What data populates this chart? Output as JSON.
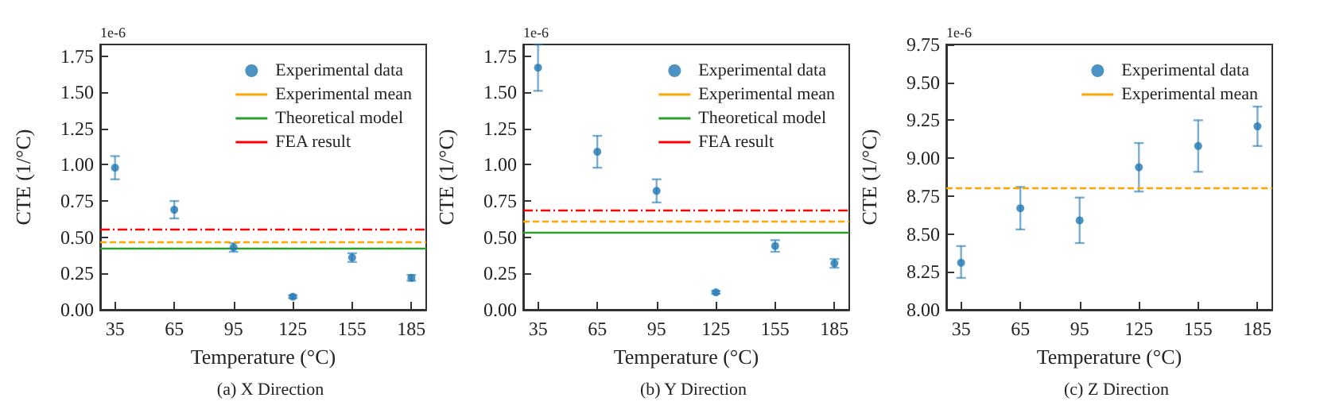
{
  "chart_data": [
    {
      "type": "scatter",
      "title": "(a) X Direction",
      "xlabel": "Temperature (°C)",
      "ylabel": "CTE (1/°C)",
      "annotations": [
        "1e-6"
      ],
      "x": [
        35,
        65,
        95,
        125,
        155,
        185
      ],
      "xlim": [
        27.5,
        192.5
      ],
      "xticks": [
        35,
        65,
        95,
        125,
        155,
        185
      ],
      "ylim": [
        0,
        1.83
      ],
      "yticks": [
        {
          "value": 0,
          "label": "0.00"
        },
        {
          "value": 0.25,
          "label": "0.25"
        },
        {
          "value": 0.5,
          "label": "0.50"
        },
        {
          "value": 0.75,
          "label": "0.75"
        },
        {
          "value": 1,
          "label": "1.00"
        },
        {
          "value": 1.25,
          "label": "1.25"
        },
        {
          "value": 1.5,
          "label": "1.50"
        },
        {
          "value": 1.75,
          "label": "1.75"
        }
      ],
      "grid": false,
      "legend": "top right",
      "marker": "circle",
      "series": [
        {
          "name": "Experimental data",
          "color": "#1f77b4",
          "values": [
            0.98,
            0.69,
            0.43,
            0.09,
            0.36,
            0.22
          ],
          "errors": [
            0.08,
            0.06,
            0.03,
            0.01,
            0.03,
            0.02
          ]
        }
      ],
      "ref_lines": [
        {
          "axis": "y",
          "value": 0.47,
          "label": "Experimental mean",
          "color": "#ffa500",
          "line_style": "dashed"
        },
        {
          "axis": "y",
          "value": 0.42,
          "label": "Theoretical model",
          "color": "#2ca02c",
          "line_style": "solid"
        },
        {
          "axis": "y",
          "value": 0.56,
          "label": "FEA result",
          "color": "#ff0000",
          "line_style": "dashdot"
        }
      ]
    },
    {
      "type": "scatter",
      "title": "(b) Y Direction",
      "xlabel": "Temperature (°C)",
      "ylabel": "CTE (1/°C)",
      "annotations": [
        "1e-6"
      ],
      "x": [
        35,
        65,
        95,
        125,
        155,
        185
      ],
      "xlim": [
        27.5,
        192.5
      ],
      "xticks": [
        35,
        65,
        95,
        125,
        155,
        185
      ],
      "ylim": [
        0,
        1.83
      ],
      "yticks": [
        {
          "value": 0,
          "label": "0.00"
        },
        {
          "value": 0.25,
          "label": "0.25"
        },
        {
          "value": 0.5,
          "label": "0.50"
        },
        {
          "value": 0.75,
          "label": "0.75"
        },
        {
          "value": 1,
          "label": "1.00"
        },
        {
          "value": 1.25,
          "label": "1.25"
        },
        {
          "value": 1.5,
          "label": "1.50"
        },
        {
          "value": 1.75,
          "label": "1.75"
        }
      ],
      "grid": false,
      "legend": "top right",
      "marker": "circle",
      "series": [
        {
          "name": "Experimental data",
          "color": "#1f77b4",
          "values": [
            1.67,
            1.09,
            0.82,
            0.12,
            0.44,
            0.32
          ],
          "errors": [
            0.16,
            0.11,
            0.08,
            0.01,
            0.04,
            0.03
          ]
        }
      ],
      "ref_lines": [
        {
          "axis": "y",
          "value": 0.61,
          "label": "Experimental mean",
          "color": "#ffa500",
          "line_style": "dashed"
        },
        {
          "axis": "y",
          "value": 0.53,
          "label": "Theoretical model",
          "color": "#2ca02c",
          "line_style": "solid"
        },
        {
          "axis": "y",
          "value": 0.69,
          "label": "FEA result",
          "color": "#ff0000",
          "line_style": "dashdot"
        }
      ]
    },
    {
      "type": "scatter",
      "title": "(c) Z Direction",
      "xlabel": "Temperature (°C)",
      "ylabel": "CTE (1/°C)",
      "annotations": [
        "1e-6"
      ],
      "x": [
        35,
        65,
        95,
        125,
        155,
        185
      ],
      "xlim": [
        27.5,
        192.5
      ],
      "xticks": [
        35,
        65,
        95,
        125,
        155,
        185
      ],
      "ylim": [
        8,
        9.75
      ],
      "yticks": [
        {
          "value": 8,
          "label": "8.00"
        },
        {
          "value": 8.25,
          "label": "8.25"
        },
        {
          "value": 8.5,
          "label": "8.50"
        },
        {
          "value": 8.75,
          "label": "8.75"
        },
        {
          "value": 9,
          "label": "9.00"
        },
        {
          "value": 9.25,
          "label": "9.25"
        },
        {
          "value": 9.5,
          "label": "9.50"
        },
        {
          "value": 9.75,
          "label": "9.75"
        }
      ],
      "grid": false,
      "legend": "top right",
      "marker": "circle",
      "series": [
        {
          "name": "Experimental data",
          "color": "#1f77b4",
          "values": [
            8.31,
            8.67,
            8.59,
            8.94,
            9.08,
            9.21
          ],
          "errors": [
            [
              8.21,
              8.42
            ],
            [
              8.53,
              8.81
            ],
            [
              8.44,
              8.74
            ],
            [
              8.78,
              9.1
            ],
            [
              8.91,
              9.25
            ],
            [
              9.08,
              9.34
            ]
          ]
        }
      ],
      "ref_lines": [
        {
          "axis": "y",
          "value": 8.8,
          "label": "Experimental mean",
          "color": "#ffa500",
          "line_style": "dashed"
        }
      ]
    }
  ]
}
